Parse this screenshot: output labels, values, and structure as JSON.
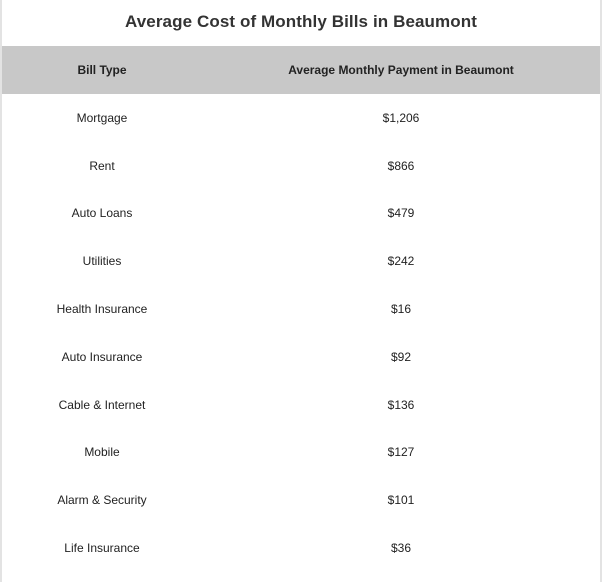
{
  "title": "Average Cost of Monthly Bills in Beaumont",
  "table": {
    "headers": [
      "Bill Type",
      "Average Monthly Payment in Beaumont"
    ],
    "rows": [
      [
        "Mortgage",
        "$1,206"
      ],
      [
        "Rent",
        "$866"
      ],
      [
        "Auto Loans",
        "$479"
      ],
      [
        "Utilities",
        "$242"
      ],
      [
        "Health Insurance",
        "$16"
      ],
      [
        "Auto Insurance",
        "$92"
      ],
      [
        "Cable & Internet",
        "$136"
      ],
      [
        "Mobile",
        "$127"
      ],
      [
        "Alarm & Security",
        "$101"
      ],
      [
        "Life Insurance",
        "$36"
      ]
    ]
  }
}
